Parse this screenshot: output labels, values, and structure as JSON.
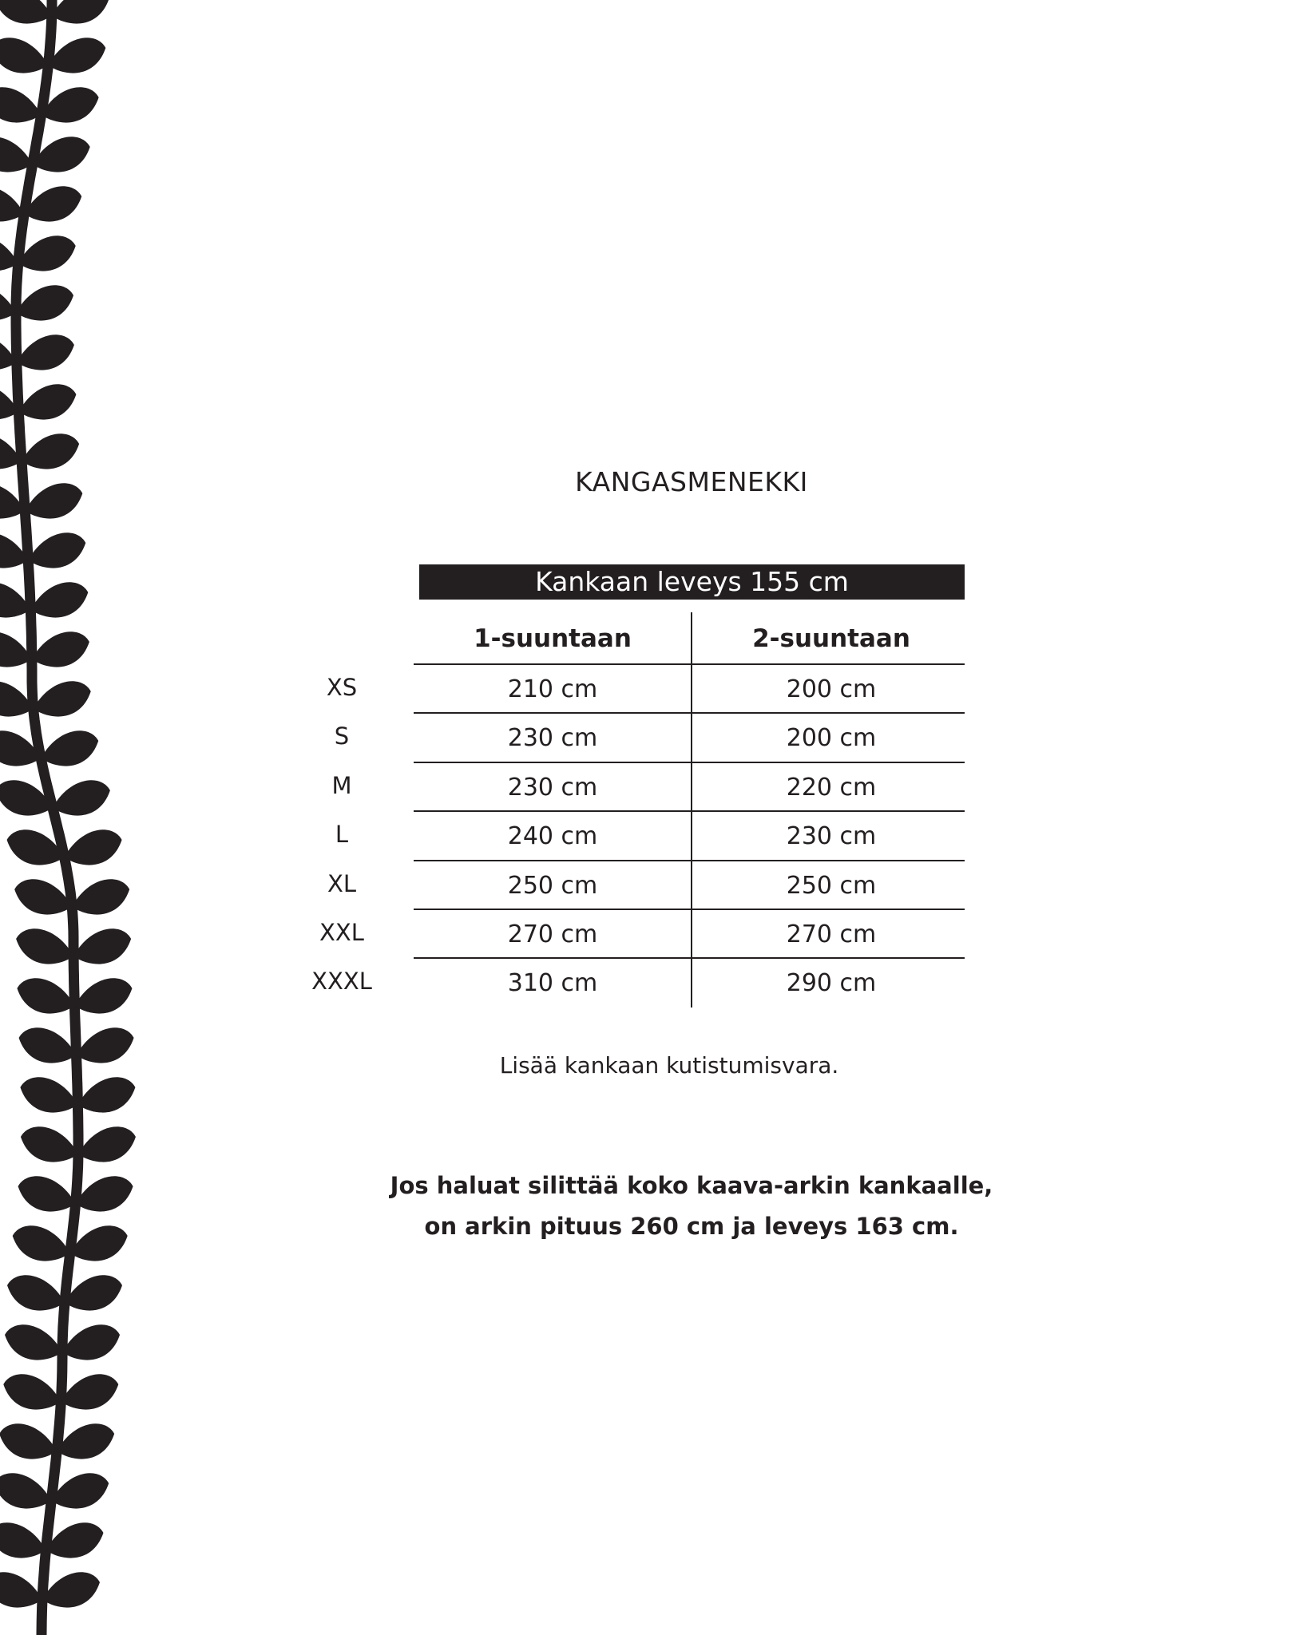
{
  "title": "KANGASMENEKKI",
  "table": {
    "header": "Kankaan leveys 155 cm",
    "columns": [
      "1-suuntaan",
      "2-suuntaan"
    ],
    "rows": [
      {
        "size": "XS",
        "one": "210 cm",
        "two": "200 cm"
      },
      {
        "size": "S",
        "one": "230 cm",
        "two": "200 cm"
      },
      {
        "size": "M",
        "one": "230 cm",
        "two": "220 cm"
      },
      {
        "size": "L",
        "one": "240 cm",
        "two": "230 cm"
      },
      {
        "size": "XL",
        "one": "250 cm",
        "two": "250 cm"
      },
      {
        "size": "XXL",
        "one": "270 cm",
        "two": "270 cm"
      },
      {
        "size": "XXXL",
        "one": "310 cm",
        "two": "290 cm"
      }
    ]
  },
  "note": "Lisää kankaan kutistumisvara.",
  "bold_text": [
    "Jos haluat silittää koko kaava-arkin kankaalle,",
    "on arkin pituus 260 cm ja leveys 163 cm."
  ],
  "colors": {
    "ink": "#231f20",
    "background": "#ffffff"
  }
}
